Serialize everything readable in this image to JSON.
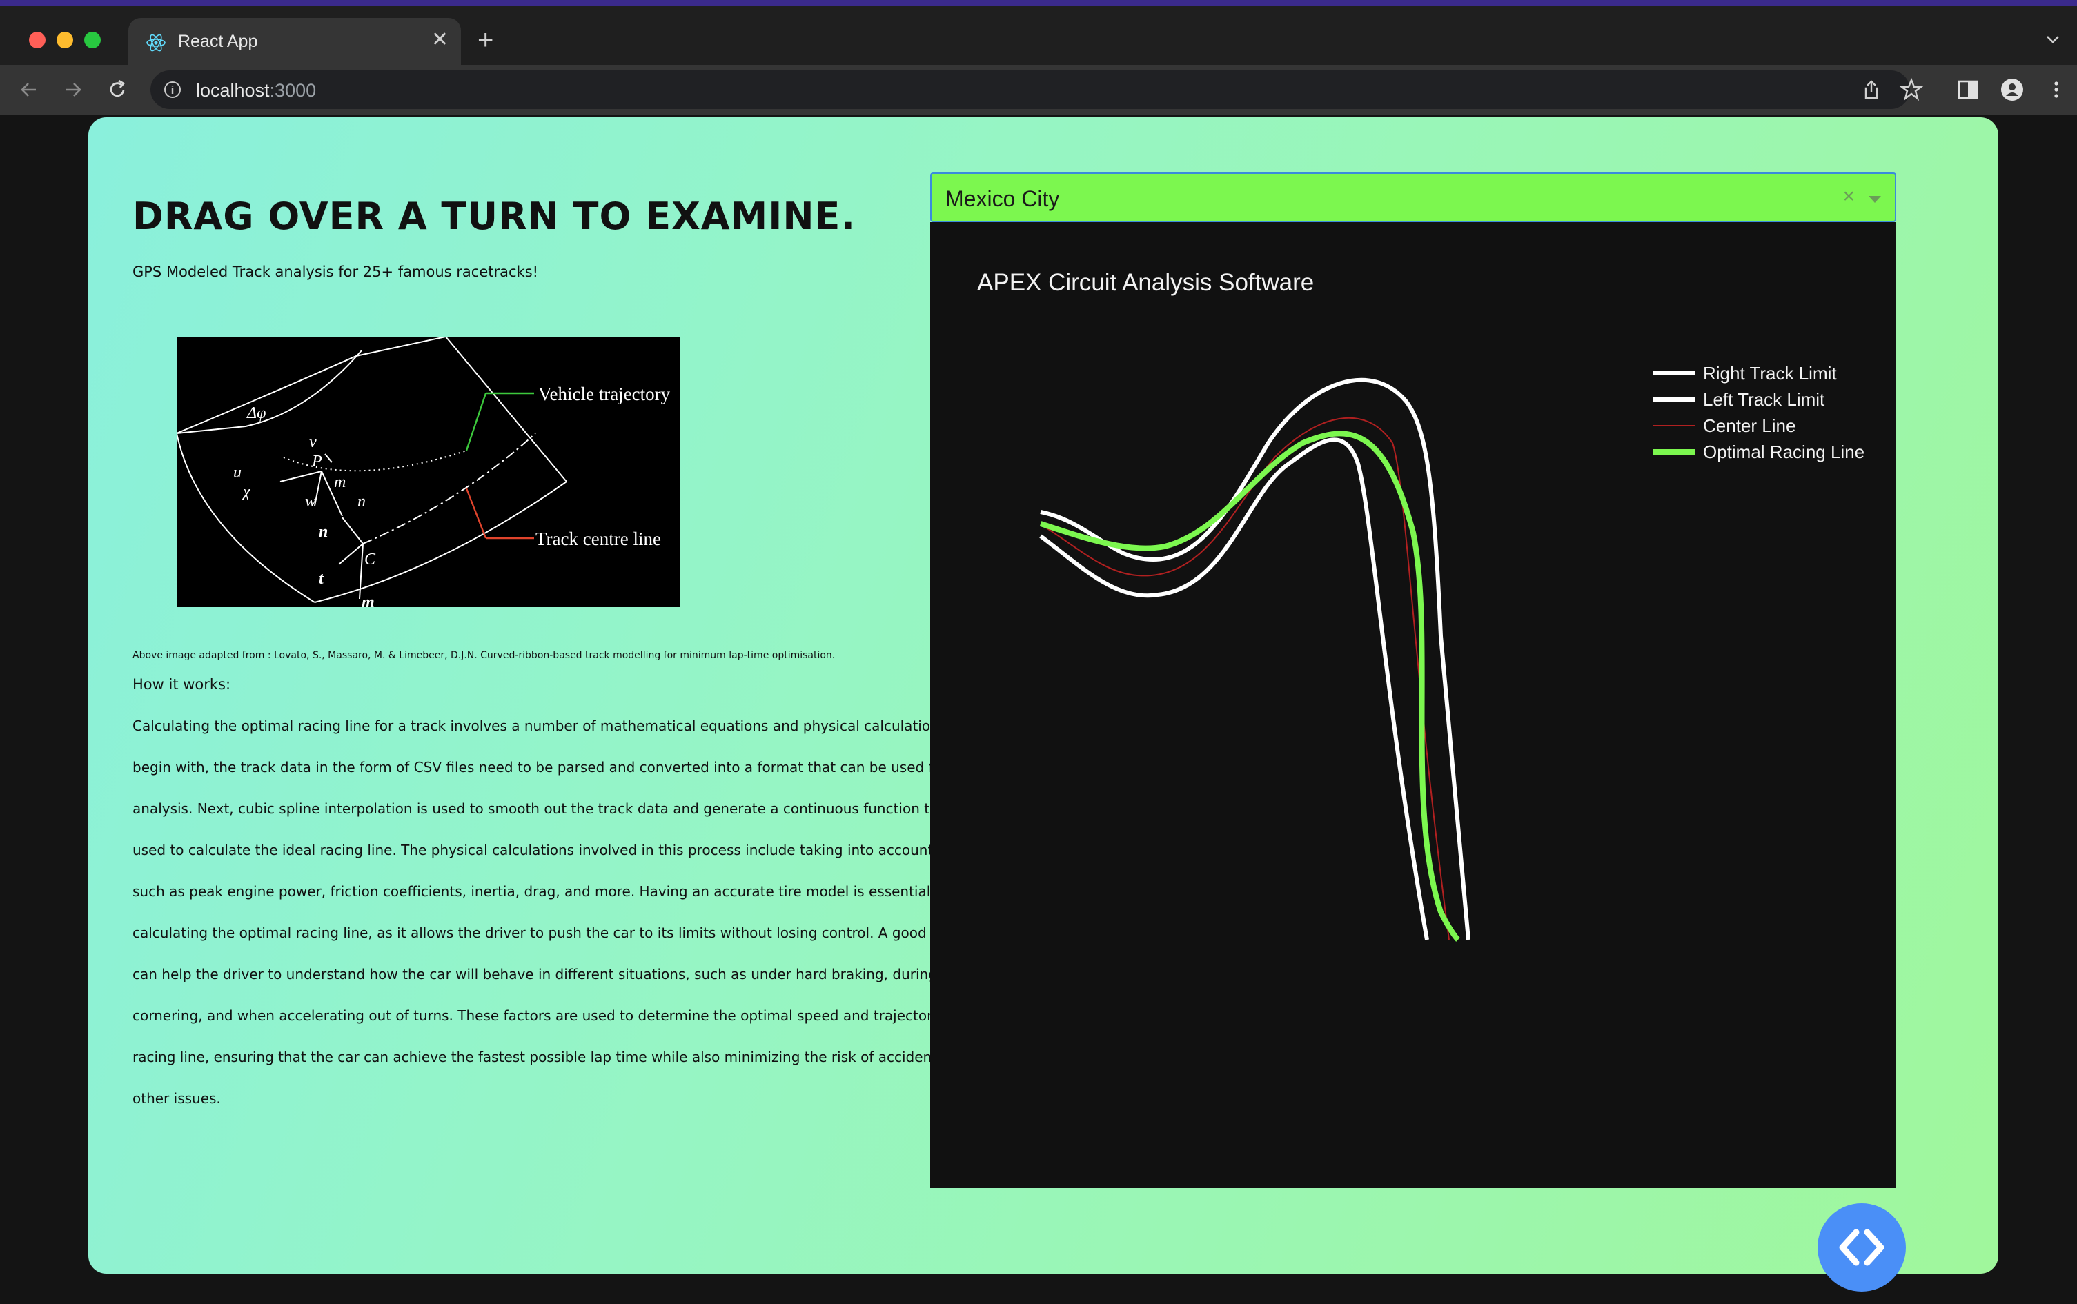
{
  "browser": {
    "tab_title": "React App",
    "url_host": "localhost",
    "url_port": ":3000"
  },
  "page": {
    "headline": "DRAG OVER A TURN TO EXAMINE.",
    "subhead": "GPS Modeled Track analysis for 25+ famous racetracks!",
    "figure": {
      "label_trajectory": "Vehicle trajectory",
      "label_centre": "Track centre line",
      "symbols": [
        "Δφ",
        "v",
        "P",
        "u",
        "χ",
        "w",
        "m",
        "n",
        "n",
        "t",
        "C",
        "m"
      ]
    },
    "caption": "Above image adapted from : Lovato, S., Massaro, M. & Limebeer, D.J.N. Curved-ribbon-based track modelling for minimum lap-time optimisation.",
    "how_title": "How it works:",
    "body": "Calculating the optimal racing line for a track involves a number of mathematical equations and physical calculations. To begin with, the track data in the form of CSV files need to be parsed and converted into a format that can be used for analysis. Next, cubic spline interpolation is used to smooth out the track data and generate a continuous function that can be used to calculate the ideal racing line. The physical calculations involved in this process include taking into account factors such as peak engine power, friction coefficients, inertia, drag, and more. Having an accurate tire model is essential for calculating the optimal racing line, as it allows the driver to push the car to its limits without losing control. A good tire model can help the driver to understand how the car will behave in different situations, such as under hard braking, during cornering, and when accelerating out of turns. These factors are used to determine the optimal speed and trajectory of the racing line, ensuring that the car can achieve the fastest possible lap time while also minimizing the risk of accidents and other issues."
  },
  "track_select": {
    "value": "Mexico City",
    "clear_symbol": "×"
  },
  "plot": {
    "title": "APEX Circuit Analysis Software",
    "legend": [
      {
        "name": "Right Track Limit",
        "color": "#ffffff"
      },
      {
        "name": "Left Track Limit",
        "color": "#ffffff"
      },
      {
        "name": "Center Line",
        "color": "#b02020"
      },
      {
        "name": "Optimal Racing Line",
        "color": "#7cf74f"
      }
    ]
  },
  "colors": {
    "accent": "#7cf74f",
    "fab": "#4a8ff7",
    "select_border": "#3a8bdc"
  },
  "icons": {
    "tab": "react-logo-icon",
    "fab": "code-brackets-icon"
  }
}
